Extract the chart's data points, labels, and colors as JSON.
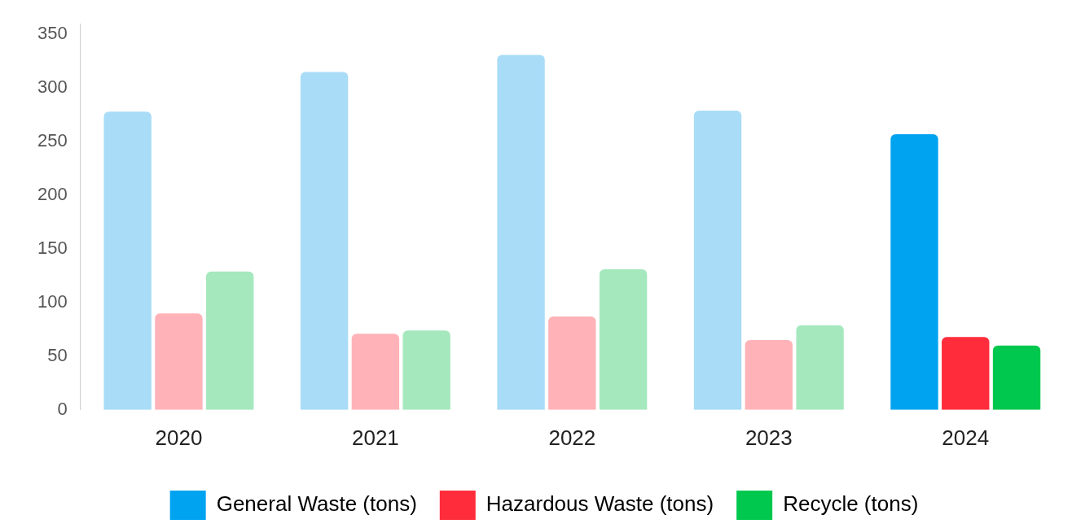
{
  "chart_data": {
    "type": "bar",
    "categories": [
      "2020",
      "2021",
      "2022",
      "2023",
      "2024"
    ],
    "series": [
      {
        "name": "General Waste (tons)",
        "color": "#00a3f0",
        "colors": [
          "#a9dcf7",
          "#a9dcf7",
          "#a9dcf7",
          "#a9dcf7",
          "#00a3f0"
        ],
        "values": [
          278,
          315,
          331,
          279,
          257
        ]
      },
      {
        "name": "Hazardous Waste (tons)",
        "color": "#ff2d3b",
        "colors": [
          "#ffb3b8",
          "#ffb3b8",
          "#ffb3b8",
          "#ffb3b8",
          "#ff2d3b"
        ],
        "values": [
          90,
          71,
          87,
          65,
          68
        ]
      },
      {
        "name": "Recycle (tons)",
        "color": "#00c74e",
        "colors": [
          "#a6e8be",
          "#a6e8be",
          "#a6e8be",
          "#a6e8be",
          "#00c74e"
        ],
        "values": [
          129,
          74,
          131,
          79,
          60
        ]
      }
    ],
    "ylim": [
      0,
      360
    ],
    "yticks": [
      0,
      50,
      100,
      150,
      200,
      250,
      300,
      350
    ],
    "grid": false,
    "legend": "bottom"
  }
}
